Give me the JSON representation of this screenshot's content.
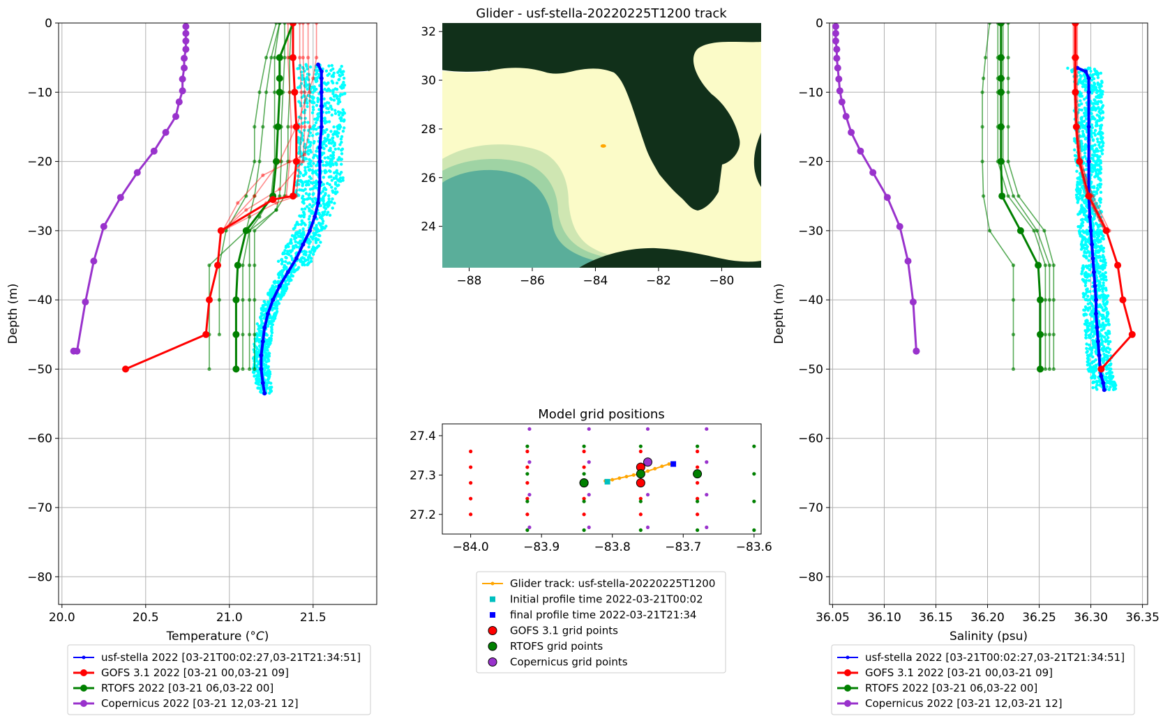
{
  "colors": {
    "glider": "#0000ff",
    "glider_scatter": "#00ffff",
    "gofs": "#ff0000",
    "rtofs": "#008000",
    "copernicus": "#9932cc",
    "track": "#ffa500",
    "initial": "#00bfbf",
    "final": "#0000ff",
    "land": "#11301a",
    "shelf": "#fbfbc8",
    "deep": "#5aae9a"
  },
  "chart_data": [
    {
      "id": "temperature",
      "type": "line",
      "xlabel": "Temperature (",
      "xlabel_unit": "°C",
      "xlabel_close": ")",
      "ylabel": "Depth (m)",
      "xlim": [
        19.98,
        21.88
      ],
      "ylim": [
        -84,
        0
      ],
      "xticks": [
        20.0,
        20.5,
        21.0,
        21.5
      ],
      "xtick_labels": [
        "20.0",
        "20.5",
        "21.0",
        "21.5"
      ],
      "yticks": [
        0,
        -10,
        -20,
        -30,
        -40,
        -50,
        -60,
        -70,
        -80
      ],
      "ytick_labels": [
        "0",
        "−10",
        "−20",
        "−30",
        "−40",
        "−50",
        "−60",
        "−70",
        "−80"
      ],
      "grid": true,
      "glider_mean": {
        "x": [
          21.53,
          21.55,
          21.55,
          21.55,
          21.55,
          21.55,
          21.54,
          21.54,
          21.54,
          21.53,
          21.51,
          21.48,
          21.44,
          21.4,
          21.35,
          21.3,
          21.26,
          21.23,
          21.21,
          21.2,
          21.19,
          21.19,
          21.2,
          21.21
        ],
        "y": [
          -6,
          -7,
          -8,
          -10,
          -12,
          -15,
          -18,
          -20,
          -23,
          -26,
          -28,
          -30,
          -32,
          -34,
          -36,
          -38,
          -40,
          -42,
          -44,
          -46,
          -48,
          -50,
          -52,
          -53.5
        ]
      },
      "gofs_mean": {
        "x": [
          21.38,
          21.38,
          21.39,
          21.4,
          21.4,
          21.38,
          21.26,
          20.95,
          20.93,
          20.88,
          20.86,
          20.38
        ],
        "y": [
          0,
          -5,
          -10,
          -15,
          -20,
          -25,
          -25.5,
          -30,
          -35,
          -40,
          -45,
          -50
        ]
      },
      "gofs_ensemble": [
        {
          "x": [
            21.42,
            21.42,
            21.43,
            21.43,
            21.42,
            21.4,
            21.28,
            20.96
          ],
          "y": [
            0,
            -5,
            -10,
            -15,
            -20,
            -25,
            -26,
            -30
          ]
        },
        {
          "x": [
            21.44,
            21.44,
            21.45,
            21.45,
            21.44,
            21.3,
            21.1,
            20.96
          ],
          "y": [
            0,
            -5,
            -10,
            -15,
            -20,
            -24,
            -27,
            -30
          ]
        },
        {
          "x": [
            21.35,
            21.35,
            21.36,
            21.37,
            21.36,
            21.34,
            21.22,
            20.95
          ],
          "y": [
            0,
            -5,
            -10,
            -15,
            -20,
            -25,
            -26,
            -30
          ]
        },
        {
          "x": [
            21.47,
            21.47,
            21.48,
            21.48,
            21.45,
            21.2,
            21.05,
            20.96
          ],
          "y": [
            0,
            -5,
            -10,
            -15,
            -19,
            -22,
            -26,
            -30
          ]
        },
        {
          "x": [
            21.52,
            21.52,
            21.5,
            21.4,
            21.3,
            21.15,
            20.96
          ],
          "y": [
            0,
            -5,
            -8,
            -15,
            -20,
            -25,
            -30
          ]
        }
      ],
      "rtofs_mean": {
        "x": [
          21.38,
          21.3,
          21.3,
          21.3,
          21.29,
          21.28,
          21.26,
          21.1,
          21.05,
          21.04,
          21.04,
          21.04
        ],
        "y": [
          0,
          -5,
          -8,
          -10,
          -15,
          -20,
          -25,
          -30,
          -35,
          -40,
          -45,
          -50
        ]
      },
      "rtofs_ensemble": [
        {
          "x": [
            21.3,
            21.25,
            21.22,
            21.2,
            21.18,
            21.15,
            21.12,
            21.1,
            20.88,
            20.88,
            20.88,
            20.88
          ],
          "y": [
            0,
            -5,
            -10,
            -15,
            -20,
            -25,
            -28,
            -30,
            -35,
            -40,
            -45,
            -50
          ]
        },
        {
          "x": [
            21.33,
            21.33,
            21.32,
            21.31,
            21.31,
            21.3,
            21.28,
            21.12,
            21.08,
            21.08,
            21.08,
            21.08
          ],
          "y": [
            0,
            -5,
            -10,
            -15,
            -20,
            -25,
            -27,
            -30,
            -35,
            -40,
            -45,
            -50
          ]
        },
        {
          "x": [
            21.3,
            21.27,
            21.27,
            21.27,
            21.27,
            21.25,
            21.18,
            21.12,
            21.12,
            21.12,
            21.12,
            21.12
          ],
          "y": [
            0,
            -5,
            -10,
            -15,
            -20,
            -25,
            -28,
            -30,
            -35,
            -40,
            -45,
            -50
          ]
        },
        {
          "x": [
            21.37,
            21.36,
            21.36,
            21.35,
            21.35,
            21.33,
            21.28,
            21.15,
            21.15,
            21.15,
            21.15,
            21.15
          ],
          "y": [
            0,
            -5,
            -10,
            -15,
            -20,
            -25,
            -27,
            -30,
            -35,
            -40,
            -45,
            -50
          ]
        },
        {
          "x": [
            21.28,
            21.22,
            21.18,
            21.15,
            21.15,
            21.1,
            20.98,
            20.94,
            20.94,
            20.94
          ],
          "y": [
            0,
            -5,
            -10,
            -15,
            -20,
            -25,
            -30,
            -35,
            -40,
            -45
          ]
        }
      ],
      "copernicus": {
        "x": [
          20.74,
          20.74,
          20.74,
          20.74,
          20.73,
          20.73,
          20.72,
          20.72,
          20.7,
          20.68,
          20.62,
          20.55,
          20.45,
          20.35,
          20.25,
          20.19,
          20.14,
          20.09,
          20.07
        ],
        "y": [
          -0.5,
          -1.5,
          -2.6,
          -3.8,
          -5.1,
          -6.5,
          -8.1,
          -9.8,
          -11.4,
          -13.5,
          -15.8,
          -18.5,
          -21.6,
          -25.2,
          -29.4,
          -34.4,
          -40.3,
          -47.4,
          -47.4
        ]
      }
    },
    {
      "id": "map",
      "type": "heatmap",
      "title": "Glider - usf-stella-20220225T1200 track",
      "xlim": [
        -88.85,
        -78.75
      ],
      "ylim": [
        22.3,
        32.35
      ],
      "xticks": [
        -88,
        -86,
        -84,
        -82,
        -80
      ],
      "xtick_labels": [
        "−88",
        "−86",
        "−84",
        "−82",
        "−80"
      ],
      "yticks": [
        24,
        26,
        28,
        30,
        32
      ],
      "ytick_labels": [
        "24",
        "26",
        "28",
        "30",
        "32"
      ],
      "glider_position": {
        "x": -83.75,
        "y": 27.3
      }
    },
    {
      "id": "grid_positions",
      "type": "scatter",
      "title": "Model grid positions",
      "xlim": [
        -84.04,
        -83.59
      ],
      "ylim": [
        27.15,
        27.43
      ],
      "xticks": [
        -84.0,
        -83.9,
        -83.8,
        -83.7,
        -83.6
      ],
      "xtick_labels": [
        "−84.0",
        "−83.9",
        "−83.8",
        "−83.7",
        "−83.6"
      ],
      "yticks": [
        27.2,
        27.3,
        27.4
      ],
      "ytick_labels": [
        "27.2",
        "27.3",
        "27.4"
      ],
      "gofs_x": [
        -84.0,
        -83.92,
        -83.84,
        -83.76,
        -83.68
      ],
      "gofs_y": [
        27.2,
        27.24,
        27.28,
        27.32,
        27.36
      ],
      "rtofs_x": [
        -83.92,
        -83.84,
        -83.76,
        -83.68,
        -83.6
      ],
      "rtofs_y": [
        27.16,
        27.233,
        27.303,
        27.373
      ],
      "copernicus_x": [
        -83.917,
        -83.833,
        -83.75,
        -83.667
      ],
      "copernicus_y": [
        27.167,
        27.25,
        27.333,
        27.417
      ],
      "track": {
        "x": [
          -83.81,
          -83.8,
          -83.79,
          -83.78,
          -83.77,
          -83.76,
          -83.75,
          -83.74,
          -83.73,
          -83.72
        ],
        "y": [
          27.285,
          27.288,
          27.292,
          27.296,
          27.3,
          27.304,
          27.31,
          27.316,
          27.322,
          27.328
        ]
      },
      "initial": {
        "x": -83.807,
        "y": 27.283
      },
      "final": {
        "x": -83.714,
        "y": 27.328
      },
      "gofs_nearest": [
        {
          "x": -83.84,
          "y": 27.28
        },
        {
          "x": -83.76,
          "y": 27.28
        },
        {
          "x": -83.76,
          "y": 27.32
        }
      ],
      "rtofs_nearest": [
        {
          "x": -83.84,
          "y": 27.28
        },
        {
          "x": -83.76,
          "y": 27.303
        },
        {
          "x": -83.68,
          "y": 27.303
        }
      ],
      "copernicus_nearest": [
        {
          "x": -83.75,
          "y": 27.333
        }
      ]
    },
    {
      "id": "salinity",
      "type": "line",
      "xlabel": "Salinity (psu)",
      "ylabel": "Depth (m)",
      "xlim": [
        36.047,
        36.355
      ],
      "ylim": [
        -84,
        0
      ],
      "xticks": [
        36.05,
        36.1,
        36.15,
        36.2,
        36.25,
        36.3,
        36.35
      ],
      "xtick_labels": [
        "36.05",
        "36.10",
        "36.15",
        "36.20",
        "36.25",
        "36.30",
        "36.35"
      ],
      "yticks": [
        0,
        -10,
        -20,
        -30,
        -40,
        -50,
        -60,
        -70,
        -80
      ],
      "ytick_labels": [
        "0",
        "−10",
        "−20",
        "−30",
        "−40",
        "−50",
        "−60",
        "−70",
        "−80"
      ],
      "grid": true,
      "glider_mean": {
        "x": [
          36.287,
          36.295,
          36.298,
          36.298,
          36.298,
          36.298,
          36.298,
          36.299,
          36.3,
          36.301,
          36.302,
          36.303,
          36.304,
          36.305,
          36.305,
          36.306,
          36.307,
          36.308,
          36.309,
          36.31,
          36.312,
          36.313
        ],
        "y": [
          -6.5,
          -7,
          -8,
          -10,
          -15,
          -20,
          -25,
          -28,
          -30,
          -32,
          -34,
          -36,
          -38,
          -40,
          -42,
          -44,
          -46,
          -48,
          -50,
          -51,
          -52,
          -53
        ]
      },
      "gofs_mean": {
        "x": [
          36.285,
          36.285,
          36.285,
          36.286,
          36.289,
          36.298,
          36.315,
          36.326,
          36.331,
          36.34,
          36.31
        ],
        "y": [
          0,
          -5,
          -10,
          -15,
          -20,
          -25,
          -30,
          -35,
          -40,
          -45,
          -50
        ]
      },
      "gofs_ensemble": [
        {
          "x": [
            36.284,
            36.284,
            36.284,
            36.285,
            36.288,
            36.297,
            36.314
          ],
          "y": [
            0,
            -5,
            -10,
            -15,
            -20,
            -25,
            -30
          ]
        },
        {
          "x": [
            36.287,
            36.287,
            36.287,
            36.288,
            36.291,
            36.3,
            36.316
          ],
          "y": [
            0,
            -5,
            -10,
            -15,
            -20,
            -25,
            -30
          ]
        },
        {
          "x": [
            36.283,
            36.283,
            36.284,
            36.285,
            36.288,
            36.296,
            36.313
          ],
          "y": [
            0,
            -5,
            -10,
            -15,
            -20,
            -25,
            -30
          ]
        },
        {
          "x": [
            36.286,
            36.286,
            36.286,
            36.287,
            36.29,
            36.302,
            36.318
          ],
          "y": [
            0,
            -5,
            -10,
            -15,
            -20,
            -25,
            -30
          ]
        }
      ],
      "rtofs_mean": {
        "x": [
          36.213,
          36.213,
          36.213,
          36.213,
          36.213,
          36.213,
          36.214,
          36.232,
          36.249,
          36.251,
          36.251,
          36.251
        ],
        "y": [
          0,
          -5,
          -8,
          -10,
          -15,
          -20,
          -25,
          -30,
          -35,
          -40,
          -45,
          -50
        ]
      },
      "rtofs_ensemble": [
        {
          "x": [
            36.202,
            36.198,
            36.196,
            36.195,
            36.195,
            36.195,
            36.196,
            36.202,
            36.225,
            36.225,
            36.225,
            36.225
          ],
          "y": [
            0,
            -5,
            -8,
            -10,
            -15,
            -20,
            -25,
            -30,
            -35,
            -40,
            -45,
            -50
          ]
        },
        {
          "x": [
            36.21,
            36.21,
            36.21,
            36.21,
            36.21,
            36.21,
            36.22,
            36.245,
            36.256,
            36.256,
            36.256,
            36.256
          ],
          "y": [
            0,
            -5,
            -8,
            -10,
            -15,
            -20,
            -25,
            -30,
            -35,
            -40,
            -45,
            -50
          ]
        },
        {
          "x": [
            36.215,
            36.215,
            36.215,
            36.215,
            36.215,
            36.215,
            36.225,
            36.248,
            36.26,
            36.26,
            36.26,
            36.26
          ],
          "y": [
            0,
            -5,
            -8,
            -10,
            -15,
            -20,
            -25,
            -30,
            -35,
            -40,
            -45,
            -50
          ]
        },
        {
          "x": [
            36.22,
            36.22,
            36.22,
            36.22,
            36.22,
            36.22,
            36.23,
            36.255,
            36.264,
            36.264,
            36.264,
            36.264
          ],
          "y": [
            0,
            -5,
            -8,
            -10,
            -15,
            -20,
            -25,
            -30,
            -35,
            -40,
            -45,
            -50
          ]
        }
      ],
      "copernicus": {
        "x": [
          36.053,
          36.053,
          36.053,
          36.054,
          36.054,
          36.055,
          36.056,
          36.057,
          36.059,
          36.063,
          36.068,
          36.077,
          36.089,
          36.103,
          36.115,
          36.123,
          36.128,
          36.131,
          36.131
        ],
        "y": [
          -0.5,
          -1.5,
          -2.6,
          -3.8,
          -5.1,
          -6.5,
          -8.1,
          -9.8,
          -11.4,
          -13.5,
          -15.8,
          -18.5,
          -21.6,
          -25.2,
          -29.4,
          -34.4,
          -40.3,
          -47.4,
          -47.4
        ]
      }
    }
  ],
  "legend_profiles": [
    {
      "label": "usf-stella 2022 [03-21T00:02:27,03-21T21:34:51]",
      "kind": "glider"
    },
    {
      "label": "GOFS 3.1 2022 [03-21 00,03-21 09]",
      "kind": "gofs"
    },
    {
      "label": "RTOFS 2022 [03-21 06,03-22 00]",
      "kind": "rtofs"
    },
    {
      "label": "Copernicus 2022 [03-21 12,03-21 12]",
      "kind": "copernicus"
    }
  ],
  "legend_grid": [
    {
      "label": "Glider track: usf-stella-20220225T1200",
      "kind": "track"
    },
    {
      "label": "Initial profile time 2022-03-21T00:02",
      "kind": "initial"
    },
    {
      "label": "final profile time 2022-03-21T21:34",
      "kind": "final"
    },
    {
      "label": "GOFS 3.1 grid points",
      "kind": "gofs"
    },
    {
      "label": "RTOFS grid points",
      "kind": "rtofs"
    },
    {
      "label": "Copernicus grid points",
      "kind": "copernicus"
    }
  ]
}
